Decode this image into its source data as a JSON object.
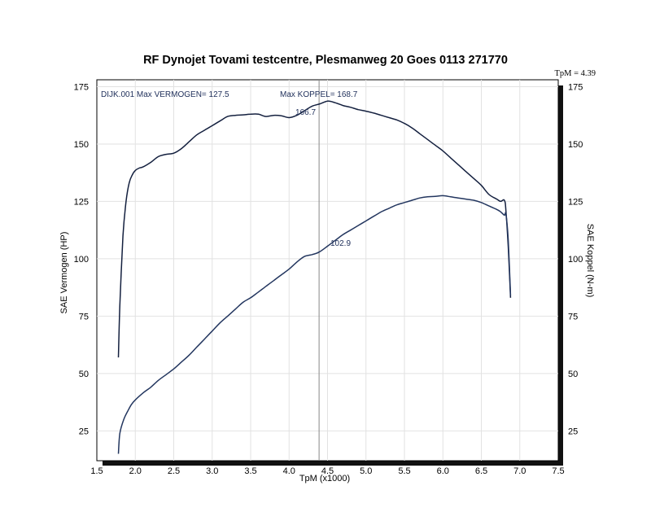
{
  "chart_data": {
    "type": "line",
    "title": "RF Dynojet Tovami testcentre, Plesmanweg 20 Goes 0113 271770",
    "corner_label": "TpM = 4.39",
    "xlabel": "TpM (x1000)",
    "ylabel_left": "SAE Vermogen (HP)",
    "ylabel_right": "SAE Koppel (N-m)",
    "xlim": [
      1.5,
      7.5
    ],
    "ylim": [
      12,
      178
    ],
    "x_ticks": [
      "1.5",
      "2.0",
      "2.5",
      "3.0",
      "3.5",
      "4.0",
      "4.5",
      "5.0",
      "5.5",
      "6.0",
      "6.5",
      "7.0",
      "7.5"
    ],
    "y_ticks_left": [
      "25",
      "50",
      "75",
      "100",
      "125",
      "150",
      "175"
    ],
    "y_ticks_right": [
      "25",
      "50",
      "75",
      "100",
      "125",
      "150",
      "175"
    ],
    "cursor_x": 4.39,
    "annotations": {
      "run_info": "DIJK.001  Max VERMOGEN= 127.5",
      "max_torque": "Max KOPPEL= 168.7",
      "torque_at_cursor": "166.7",
      "power_at_cursor": "102.9"
    },
    "series": [
      {
        "name": "SAE Koppel",
        "x": [
          1.78,
          1.8,
          1.84,
          1.88,
          1.92,
          1.96,
          2.0,
          2.05,
          2.1,
          2.2,
          2.3,
          2.4,
          2.5,
          2.6,
          2.7,
          2.8,
          2.9,
          3.0,
          3.1,
          3.2,
          3.3,
          3.4,
          3.5,
          3.6,
          3.7,
          3.8,
          3.9,
          4.0,
          4.1,
          4.2,
          4.3,
          4.4,
          4.5,
          4.6,
          4.7,
          4.8,
          4.9,
          5.0,
          5.1,
          5.2,
          5.3,
          5.4,
          5.5,
          5.6,
          5.7,
          5.8,
          5.9,
          6.0,
          6.1,
          6.2,
          6.3,
          6.4,
          6.5,
          6.6,
          6.7,
          6.75,
          6.8,
          6.82,
          6.85,
          6.88
        ],
        "values": [
          57,
          80,
          110,
          125,
          133,
          136.5,
          138.5,
          139.5,
          140,
          142,
          144.5,
          145.5,
          146,
          148,
          151,
          154,
          156,
          158,
          160,
          162,
          162.5,
          162.7,
          163,
          163,
          162,
          162.5,
          162.3,
          161.5,
          162.5,
          164.5,
          166.5,
          167.5,
          168.7,
          168,
          166.8,
          166,
          165,
          164.3,
          163.5,
          162.5,
          161.5,
          160.5,
          159,
          157,
          154.5,
          152,
          149.5,
          147,
          144,
          141,
          138,
          135,
          132,
          128,
          126,
          125,
          125.5,
          121,
          105,
          83
        ]
      },
      {
        "name": "SAE Vermogen",
        "x": [
          1.78,
          1.8,
          1.85,
          1.9,
          1.95,
          2.0,
          2.1,
          2.2,
          2.3,
          2.4,
          2.5,
          2.6,
          2.7,
          2.8,
          2.9,
          3.0,
          3.1,
          3.2,
          3.3,
          3.4,
          3.5,
          3.6,
          3.7,
          3.8,
          3.9,
          4.0,
          4.1,
          4.2,
          4.3,
          4.39,
          4.5,
          4.6,
          4.7,
          4.8,
          4.9,
          5.0,
          5.1,
          5.2,
          5.3,
          5.4,
          5.5,
          5.6,
          5.7,
          5.8,
          5.9,
          6.0,
          6.1,
          6.2,
          6.3,
          6.4,
          6.5,
          6.6,
          6.7,
          6.75,
          6.8,
          6.82,
          6.85,
          6.88
        ],
        "values": [
          15,
          24,
          30,
          33.5,
          36.5,
          38.5,
          41.5,
          44,
          47,
          49.5,
          52,
          55,
          58,
          61.5,
          65,
          68.5,
          72,
          75,
          78,
          81,
          83,
          85.5,
          88,
          90.5,
          93,
          95.5,
          98.5,
          101,
          101.8,
          102.9,
          105.5,
          108,
          110.5,
          112.5,
          114.5,
          116.5,
          118.5,
          120.5,
          122,
          123.5,
          124.5,
          125.5,
          126.5,
          127,
          127.2,
          127.5,
          127,
          126.5,
          126,
          125.5,
          124.5,
          123,
          121.5,
          120.5,
          119,
          119.5,
          108,
          84
        ]
      }
    ]
  }
}
